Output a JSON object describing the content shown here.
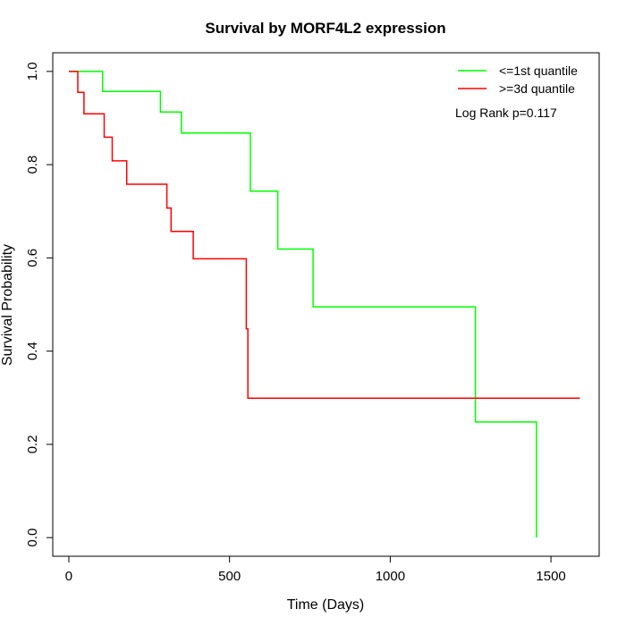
{
  "chart_data": {
    "type": "line",
    "title": "Survival by MORF4L2 expression",
    "xlabel": "Time (Days)",
    "ylabel": "Survival Probability",
    "xlim": [
      -50,
      1650
    ],
    "ylim": [
      -0.04,
      1.04
    ],
    "x_ticks": [
      0,
      500,
      1000,
      1500
    ],
    "x_tick_labels": [
      "0",
      "500",
      "1000",
      "1500"
    ],
    "y_ticks": [
      0.0,
      0.2,
      0.4,
      0.6,
      0.8,
      1.0
    ],
    "y_tick_labels": [
      "0.0",
      "0.2",
      "0.4",
      "0.6",
      "0.8",
      "1.0"
    ],
    "grid": false,
    "legend_position": "top-right",
    "annotation": "Log Rank p=0.117",
    "series": [
      {
        "name": "<=1st quantile",
        "color": "#00ff00",
        "step_points": [
          [
            0,
            1.0
          ],
          [
            105,
            1.0
          ],
          [
            105,
            0.957
          ],
          [
            285,
            0.957
          ],
          [
            285,
            0.913
          ],
          [
            350,
            0.913
          ],
          [
            350,
            0.868
          ],
          [
            565,
            0.868
          ],
          [
            565,
            0.743
          ],
          [
            650,
            0.743
          ],
          [
            650,
            0.619
          ],
          [
            760,
            0.619
          ],
          [
            760,
            0.495
          ],
          [
            1265,
            0.495
          ],
          [
            1265,
            0.248
          ],
          [
            1455,
            0.248
          ],
          [
            1455,
            0.0
          ]
        ]
      },
      {
        "name": ">=3d quantile",
        "color": "#ff0000",
        "step_points": [
          [
            0,
            1.0
          ],
          [
            28,
            1.0
          ],
          [
            28,
            0.955
          ],
          [
            47,
            0.955
          ],
          [
            47,
            0.909
          ],
          [
            110,
            0.909
          ],
          [
            110,
            0.859
          ],
          [
            135,
            0.859
          ],
          [
            135,
            0.808
          ],
          [
            180,
            0.808
          ],
          [
            180,
            0.758
          ],
          [
            305,
            0.758
          ],
          [
            305,
            0.707
          ],
          [
            318,
            0.707
          ],
          [
            318,
            0.657
          ],
          [
            387,
            0.657
          ],
          [
            387,
            0.598
          ],
          [
            552,
            0.598
          ],
          [
            552,
            0.448
          ],
          [
            557,
            0.448
          ],
          [
            557,
            0.299
          ],
          [
            1590,
            0.299
          ]
        ]
      }
    ]
  }
}
